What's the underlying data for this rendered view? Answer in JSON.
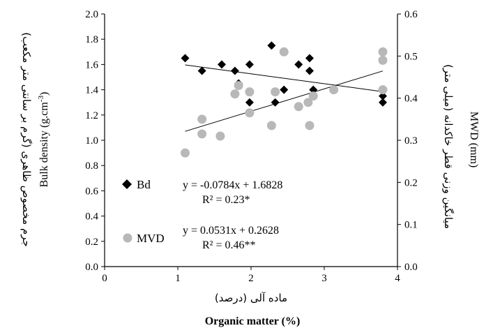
{
  "chart_data": {
    "type": "scatter",
    "title": "",
    "xlabel": "Organic matter (%)",
    "xlabel_fa": "ماده آلی (درصد)",
    "ylabel": "Bulk density (g.cm",
    "ylabel_sup": "-3",
    "ylabel_close": ")",
    "ylabel_fa": "جرم مخصوص ظاهری (گرم بر سانتی متر مکعب)",
    "y2label": "MWD (mm)",
    "y2label_fa": "میانگین وزنی قطر خاکدانه (میلی متر)",
    "xlim": [
      0,
      4
    ],
    "ylim": [
      0.0,
      2.0
    ],
    "y2lim": [
      0.0,
      0.6
    ],
    "xticks": [
      "0",
      "1",
      "2",
      "3",
      "4"
    ],
    "yticks": [
      "0.0",
      "0.2",
      "0.4",
      "0.6",
      "0.8",
      "1.0",
      "1.2",
      "1.4",
      "1.6",
      "1.8",
      "2.0"
    ],
    "y2ticks": [
      "0.0",
      "0.1",
      "0.2",
      "0.3",
      "0.4",
      "0.5",
      "0.6"
    ],
    "grid": false,
    "legend_position": "left-inside",
    "series": [
      {
        "name": "Bd",
        "axis": "left",
        "marker": "diamond",
        "color": "#000000",
        "points": [
          [
            1.1,
            1.65
          ],
          [
            1.33,
            1.55
          ],
          [
            1.6,
            1.6
          ],
          [
            1.78,
            1.55
          ],
          [
            1.83,
            1.45
          ],
          [
            1.98,
            1.6
          ],
          [
            1.98,
            1.3
          ],
          [
            2.28,
            1.75
          ],
          [
            2.33,
            1.3
          ],
          [
            2.45,
            1.4
          ],
          [
            2.65,
            1.6
          ],
          [
            2.8,
            1.65
          ],
          [
            2.8,
            1.55
          ],
          [
            2.85,
            1.4
          ],
          [
            3.8,
            1.35
          ],
          [
            3.8,
            1.3
          ]
        ],
        "equation": "y = -0.0784x + 1.6828",
        "r2": "R² = 0.23*",
        "trend": {
          "slope": -0.0784,
          "intercept": 1.6828,
          "x_from": 1.1,
          "x_to": 3.8
        }
      },
      {
        "name": "MVD",
        "axis": "right",
        "marker": "circle",
        "color": "#b8b8b8",
        "points": [
          [
            1.1,
            0.27
          ],
          [
            1.33,
            0.35
          ],
          [
            1.33,
            0.315
          ],
          [
            1.58,
            0.31
          ],
          [
            1.78,
            0.41
          ],
          [
            1.83,
            0.43
          ],
          [
            1.98,
            0.415
          ],
          [
            1.98,
            0.365
          ],
          [
            2.28,
            0.335
          ],
          [
            2.33,
            0.415
          ],
          [
            2.45,
            0.51
          ],
          [
            2.65,
            0.38
          ],
          [
            2.78,
            0.39
          ],
          [
            2.8,
            0.335
          ],
          [
            2.85,
            0.405
          ],
          [
            3.13,
            0.42
          ],
          [
            3.8,
            0.51
          ],
          [
            3.8,
            0.49
          ],
          [
            3.8,
            0.42
          ]
        ],
        "equation": "y = 0.0531x + 0.2628",
        "r2": "R² = 0.46**",
        "trend": {
          "slope": 0.0531,
          "intercept": 0.2628,
          "x_from": 1.1,
          "x_to": 3.8
        }
      }
    ]
  }
}
